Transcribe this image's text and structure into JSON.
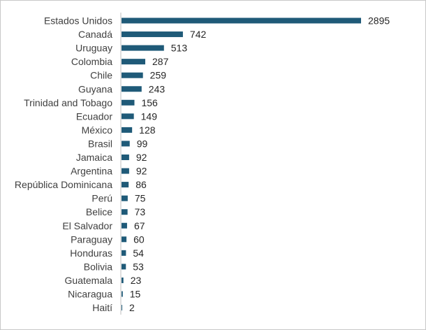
{
  "chart_data": {
    "type": "bar",
    "orientation": "horizontal",
    "title": "",
    "xlabel": "",
    "ylabel": "",
    "xlim": [
      0,
      2895
    ],
    "grid": false,
    "legend": "none",
    "bar_color": "#1f5a78",
    "axis_color": "#bfbfbf",
    "categories": [
      "Estados Unidos",
      "Canadá",
      "Uruguay",
      "Colombia",
      "Chile",
      "Guyana",
      "Trinidad and Tobago",
      "Ecuador",
      "México",
      "Brasil",
      "Jamaica",
      "Argentina",
      "República Dominicana",
      "Perú",
      "Belice",
      "El Salvador",
      "Paraguay",
      "Honduras",
      "Bolivia",
      "Guatemala",
      "Nicaragua",
      "Haití"
    ],
    "values": [
      2895,
      742,
      513,
      287,
      259,
      243,
      156,
      149,
      128,
      99,
      92,
      92,
      86,
      75,
      73,
      67,
      60,
      54,
      53,
      23,
      15,
      2
    ]
  }
}
